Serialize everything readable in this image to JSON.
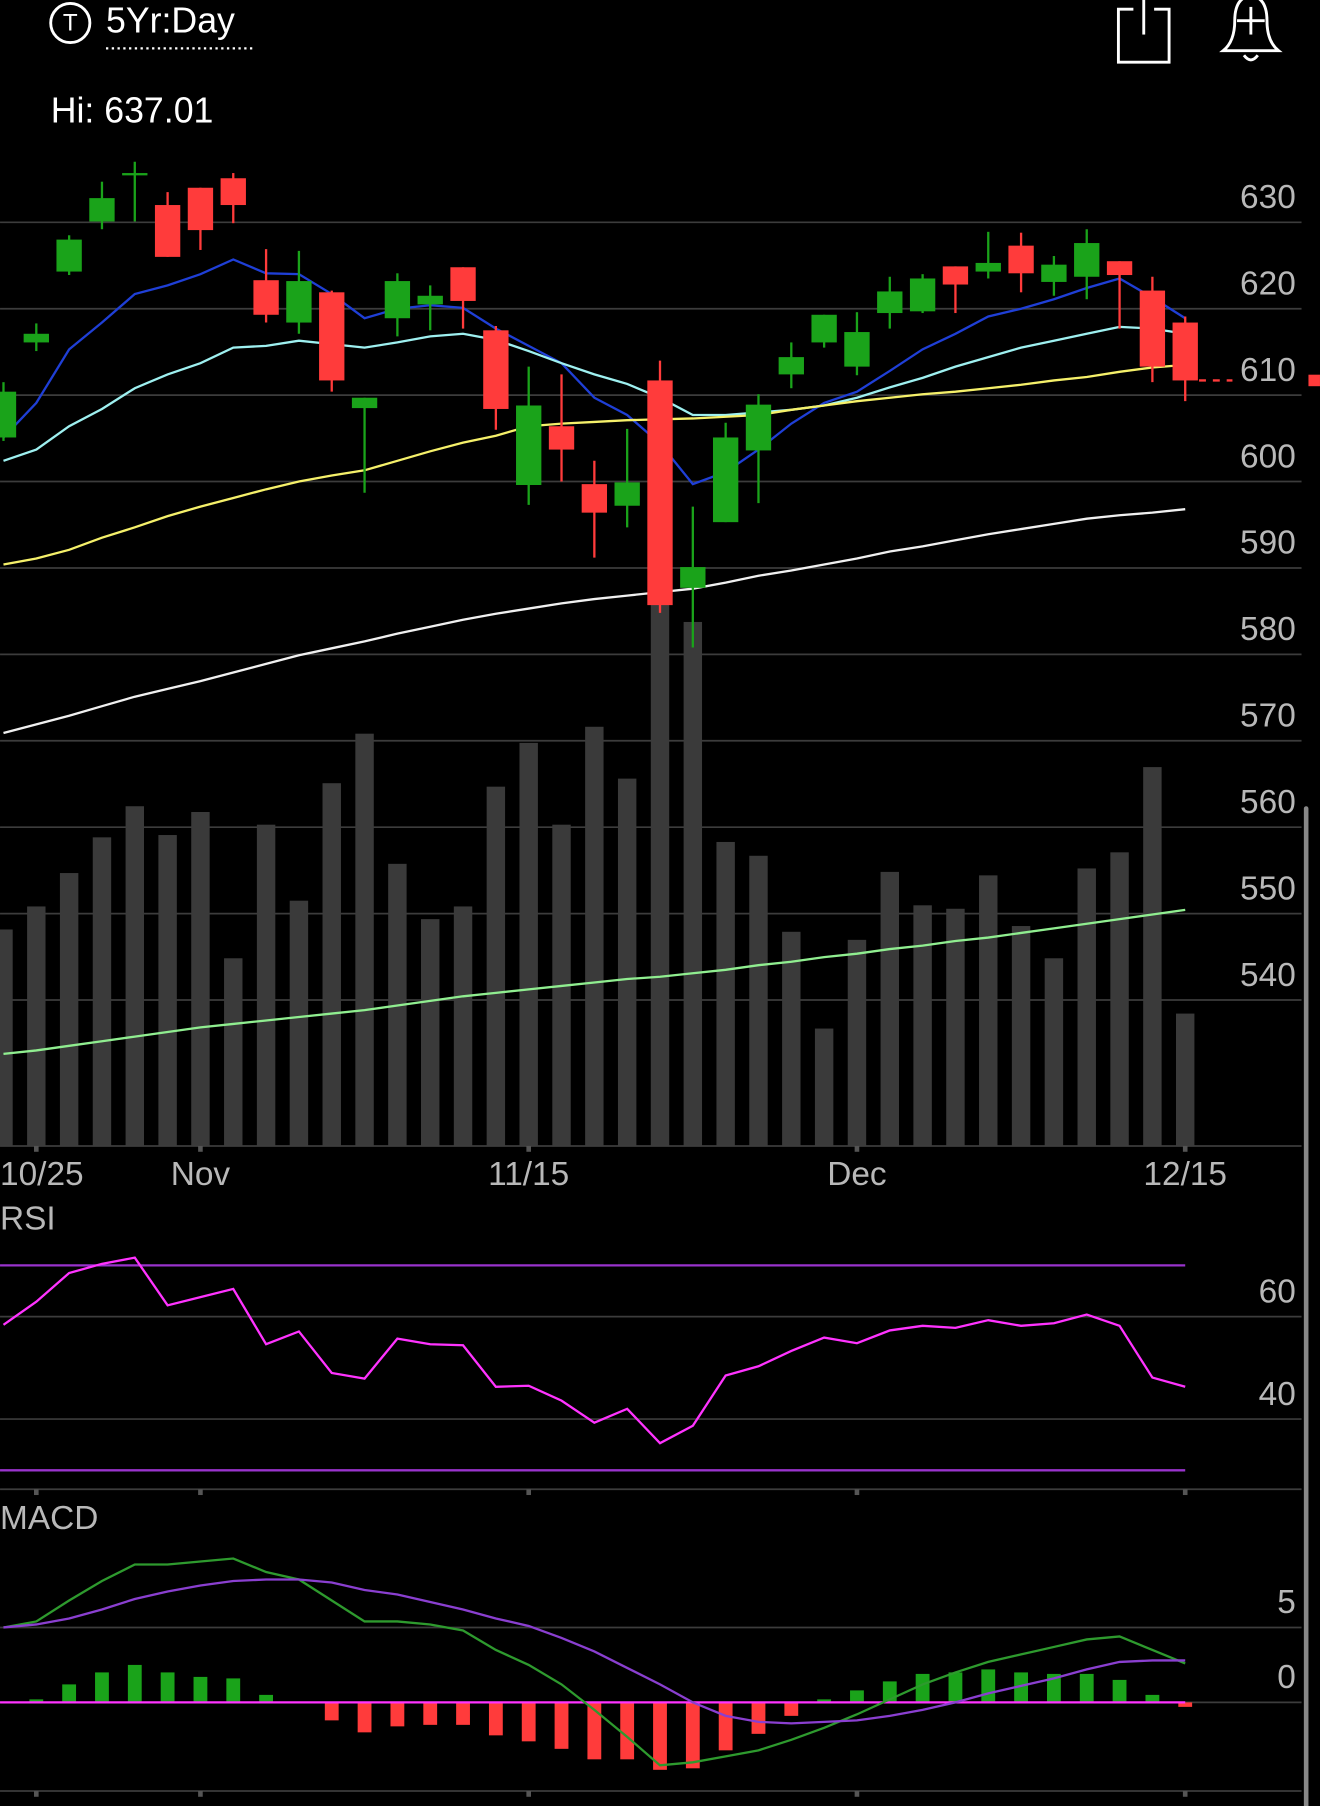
{
  "header": {
    "icon_letter": "T",
    "timeframe": "5Yr:Day",
    "high": "Hi: 637.01"
  },
  "chart_data": [
    {
      "type": "candlestick",
      "categories": [
        null,
        "10/25",
        null,
        null,
        null,
        null,
        "Nov",
        null,
        null,
        null,
        null,
        null,
        null,
        null,
        null,
        null,
        "11/15",
        null,
        null,
        null,
        null,
        null,
        null,
        null,
        null,
        null,
        "Dec",
        null,
        null,
        null,
        null,
        null,
        null,
        null,
        null,
        null,
        "12/15"
      ],
      "open": [
        605.1,
        616.1,
        624.3,
        630.1,
        635.5,
        632,
        634,
        635.1,
        623.3,
        618.4,
        621.9,
        608.5,
        618.9,
        620.5,
        624.8,
        617.5,
        599.6,
        606.4,
        599.7,
        597.2,
        611.7,
        587.7,
        595.3,
        603.6,
        612.4,
        616.1,
        613.3,
        619.5,
        619.7,
        624.9,
        624.3,
        627.3,
        623.1,
        623.7,
        625.5,
        622.1,
        618.4
      ],
      "high": [
        611.5,
        618.3,
        628.5,
        634.7,
        637.01,
        633.5,
        634,
        635.7,
        626.9,
        626.7,
        622.1,
        609.7,
        624.1,
        622.7,
        624.8,
        618,
        613.3,
        612.4,
        602.4,
        606.1,
        614,
        597.1,
        606.8,
        610.1,
        616.1,
        619.3,
        619.6,
        623.7,
        624,
        624.9,
        628.9,
        628.8,
        626.1,
        629.2,
        625.5,
        623.7,
        619.1
      ],
      "low": [
        604.7,
        615.1,
        623.9,
        629.2,
        630.1,
        626,
        626.8,
        629.9,
        618.4,
        617.1,
        610.4,
        598.7,
        616.8,
        617.5,
        617.7,
        606,
        597.3,
        600,
        591.2,
        594.7,
        584.8,
        580.8,
        595.3,
        597.5,
        610.8,
        615.5,
        612.3,
        617.7,
        619.5,
        619.5,
        623.5,
        621.9,
        621.5,
        621.1,
        617.7,
        611.5,
        609.3
      ],
      "close": [
        610.4,
        617.1,
        628,
        632.8,
        635.7,
        626,
        629.1,
        632,
        619.3,
        623.2,
        611.7,
        609.7,
        623.2,
        621.5,
        620.9,
        608.4,
        608.8,
        603.7,
        596.4,
        599.9,
        585.7,
        590.1,
        605.1,
        608.9,
        614.4,
        619.3,
        617.3,
        622,
        623.5,
        622.8,
        625.3,
        624.1,
        625.1,
        627.6,
        623.9,
        613.3,
        611.7
      ],
      "up_color": "#1aa31a",
      "down_color": "#ff3b3b",
      "ylim": [
        523.1,
        638.4
      ],
      "yticks": [
        540,
        550,
        560,
        570,
        580,
        590,
        600,
        610,
        620,
        630
      ],
      "grid": true,
      "lines": [
        {
          "color": "#1f3fd6",
          "values": [
            605.1,
            609.1,
            615.3,
            618.4,
            621.7,
            622.7,
            624,
            625.7,
            624.1,
            624,
            621.7,
            618.9,
            620,
            620.4,
            620.1,
            617.7,
            615.7,
            613.7,
            609.7,
            607.7,
            604.4,
            599.7,
            601.1,
            603.7,
            606.7,
            609.1,
            610.4,
            612.8,
            615.3,
            617.1,
            619.1,
            620,
            621.1,
            622.4,
            623.5,
            621.3,
            618.9
          ]
        },
        {
          "color": "#9ef0f0",
          "values": [
            602.4,
            603.7,
            606.4,
            608.4,
            610.8,
            612.4,
            613.7,
            615.5,
            615.7,
            616.3,
            615.9,
            615.5,
            616.1,
            616.8,
            617.1,
            616.4,
            615.1,
            613.7,
            612.4,
            611.3,
            609.7,
            607.7,
            607.7,
            608,
            608.3,
            608.8,
            609.7,
            610.9,
            612,
            613.3,
            614.4,
            615.5,
            616.3,
            617.1,
            617.9,
            617.7,
            617.1
          ]
        },
        {
          "color": "#f5f06a",
          "values": [
            590.4,
            591.1,
            592.1,
            593.5,
            594.7,
            596,
            597.1,
            598.1,
            599.1,
            600,
            600.7,
            601.3,
            602.4,
            603.5,
            604.5,
            605.3,
            606.4,
            606.7,
            606.9,
            607.1,
            607.2,
            607.3,
            607.5,
            607.7,
            608.3,
            608.8,
            609.3,
            609.7,
            610.1,
            610.4,
            610.8,
            611.2,
            611.7,
            612.1,
            612.7,
            613.2,
            613.5
          ]
        },
        {
          "color": "#f0f0f0",
          "values": [
            570.9,
            571.9,
            572.9,
            574,
            575.1,
            576,
            576.9,
            577.9,
            578.9,
            579.9,
            580.7,
            581.5,
            582.4,
            583.2,
            584,
            584.7,
            585.3,
            585.9,
            586.4,
            586.8,
            587.2,
            587.6,
            588.3,
            589.1,
            589.7,
            590.4,
            591.1,
            591.9,
            592.5,
            593.2,
            593.9,
            594.5,
            595.1,
            595.7,
            596.1,
            596.4,
            596.8
          ]
        }
      ],
      "volume": {
        "color": "#3a3a3a",
        "ylim": [
          0,
          500
        ],
        "values": [
          188,
          208,
          237,
          268,
          295,
          270,
          290,
          163,
          279,
          213,
          315,
          358,
          245,
          197,
          208,
          312,
          350,
          279,
          364,
          319,
          475,
          455,
          264,
          252,
          186,
          102,
          179,
          238,
          209,
          206,
          235,
          191,
          163,
          241,
          255,
          329,
          115
        ],
        "average": {
          "color": "#90ee90",
          "values": [
            80,
            83,
            87,
            91,
            95,
            99,
            103,
            106,
            109,
            112,
            115,
            118,
            122,
            126,
            130,
            133,
            136,
            139,
            142,
            145,
            147,
            150,
            153,
            157,
            160,
            164,
            167,
            171,
            174,
            178,
            181,
            185,
            189,
            193,
            197,
            201,
            205
          ]
        }
      },
      "last_color": "#ff3b3b"
    },
    {
      "type": "line",
      "title": "RSI",
      "series": [
        {
          "color": "#ff33ff",
          "values": [
            58.4,
            62.9,
            68.5,
            70.3,
            71.5,
            62.2,
            63.8,
            65.4,
            54.6,
            57.1,
            49,
            47.9,
            55.7,
            54.6,
            54.4,
            46.3,
            46.5,
            43.6,
            39.3,
            42,
            35.3,
            38.7,
            48.5,
            50.3,
            53.3,
            55.9,
            54.8,
            57.3,
            58.2,
            57.8,
            59.3,
            58.2,
            58.7,
            60.4,
            58.2,
            48.1,
            46.3
          ]
        }
      ],
      "bands": {
        "color": "#9933cc",
        "values": [
          70,
          30
        ]
      },
      "ylim": [
        26.3,
        81.6
      ],
      "yticks": [
        40,
        60
      ],
      "grid": true
    },
    {
      "type": "macd",
      "title": "MACD",
      "series": [
        {
          "color": "#2e9a2e",
          "values": [
            5,
            5.4,
            6.8,
            8.1,
            9.2,
            9.2,
            9.4,
            9.6,
            8.7,
            8.2,
            6.8,
            5.4,
            5.4,
            5.2,
            4.8,
            3.5,
            2.5,
            1.2,
            -0.5,
            -2.3,
            -4.2,
            -4,
            -3.6,
            -3.2,
            -2.5,
            -1.7,
            -0.8,
            0.2,
            1.2,
            2,
            2.7,
            3.2,
            3.7,
            4.2,
            4.4,
            3.5,
            2.6
          ]
        },
        {
          "color": "#8a3fd0",
          "values": [
            5,
            5.2,
            5.6,
            6.2,
            6.9,
            7.4,
            7.8,
            8.1,
            8.2,
            8.2,
            8,
            7.5,
            7.2,
            6.7,
            6.2,
            5.6,
            5.1,
            4.3,
            3.4,
            2.3,
            1.2,
            0,
            -0.9,
            -1.3,
            -1.4,
            -1.3,
            -1.2,
            -0.9,
            -0.5,
            0,
            0.6,
            1.1,
            1.6,
            2.2,
            2.7,
            2.8,
            2.8
          ]
        }
      ],
      "histogram": {
        "up_color": "#1aa31a",
        "down_color": "#ff3b3b",
        "values": [
          0,
          0.2,
          1.2,
          2,
          2.5,
          2,
          1.7,
          1.6,
          0.5,
          0,
          -1.2,
          -2,
          -1.6,
          -1.5,
          -1.5,
          -2.2,
          -2.6,
          -3.1,
          -3.8,
          -3.8,
          -4.5,
          -4.4,
          -3.2,
          -2.1,
          -0.9,
          0.2,
          0.8,
          1.4,
          1.9,
          2,
          2.2,
          2,
          1.9,
          1.9,
          1.5,
          0.5,
          -0.3
        ]
      },
      "zero_color": "#ff33ff",
      "ylim": [
        -6.3,
        13.3
      ],
      "yticks": [
        0,
        5
      ],
      "grid": true
    }
  ]
}
